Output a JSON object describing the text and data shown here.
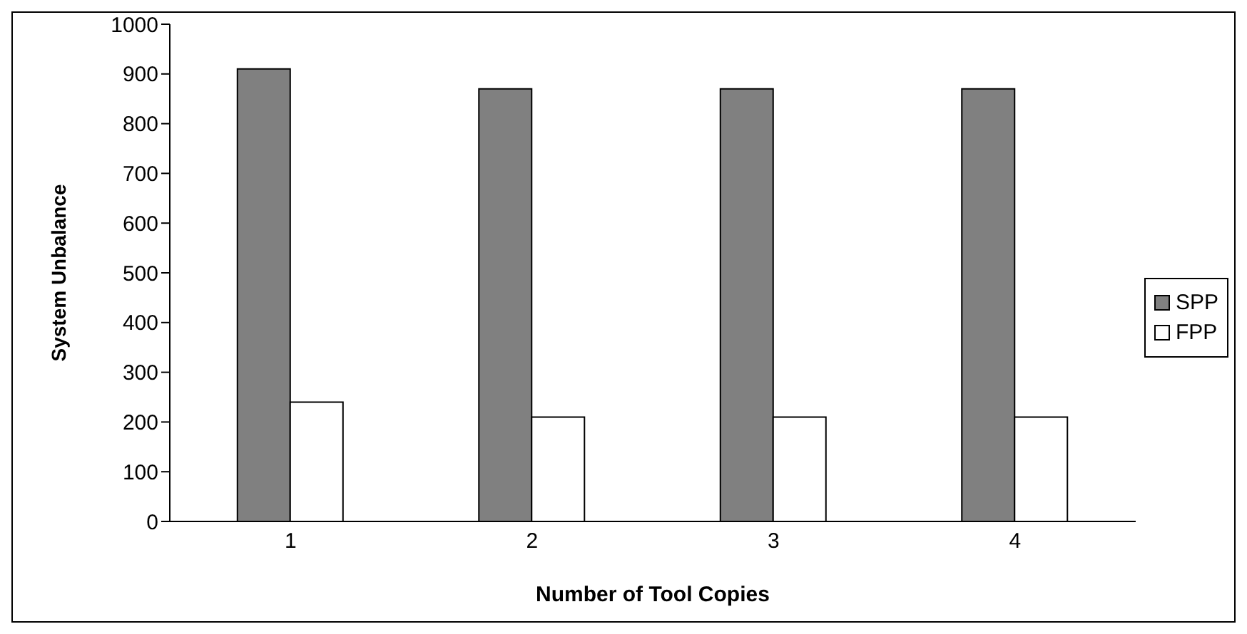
{
  "chart_data": {
    "type": "bar",
    "xlabel": "Number of Tool Copies",
    "ylabel": "System Unbalance",
    "categories": [
      "1",
      "2",
      "3",
      "4"
    ],
    "series": [
      {
        "name": "SPP",
        "color": "#808080",
        "values": [
          910,
          870,
          870,
          870
        ]
      },
      {
        "name": "FPP",
        "color": "#ffffff",
        "values": [
          240,
          210,
          210,
          210
        ]
      }
    ],
    "ylim": [
      0,
      1000
    ],
    "yticks": [
      0,
      100,
      200,
      300,
      400,
      500,
      600,
      700,
      800,
      900,
      1000
    ],
    "grid": false,
    "legend": "right"
  }
}
